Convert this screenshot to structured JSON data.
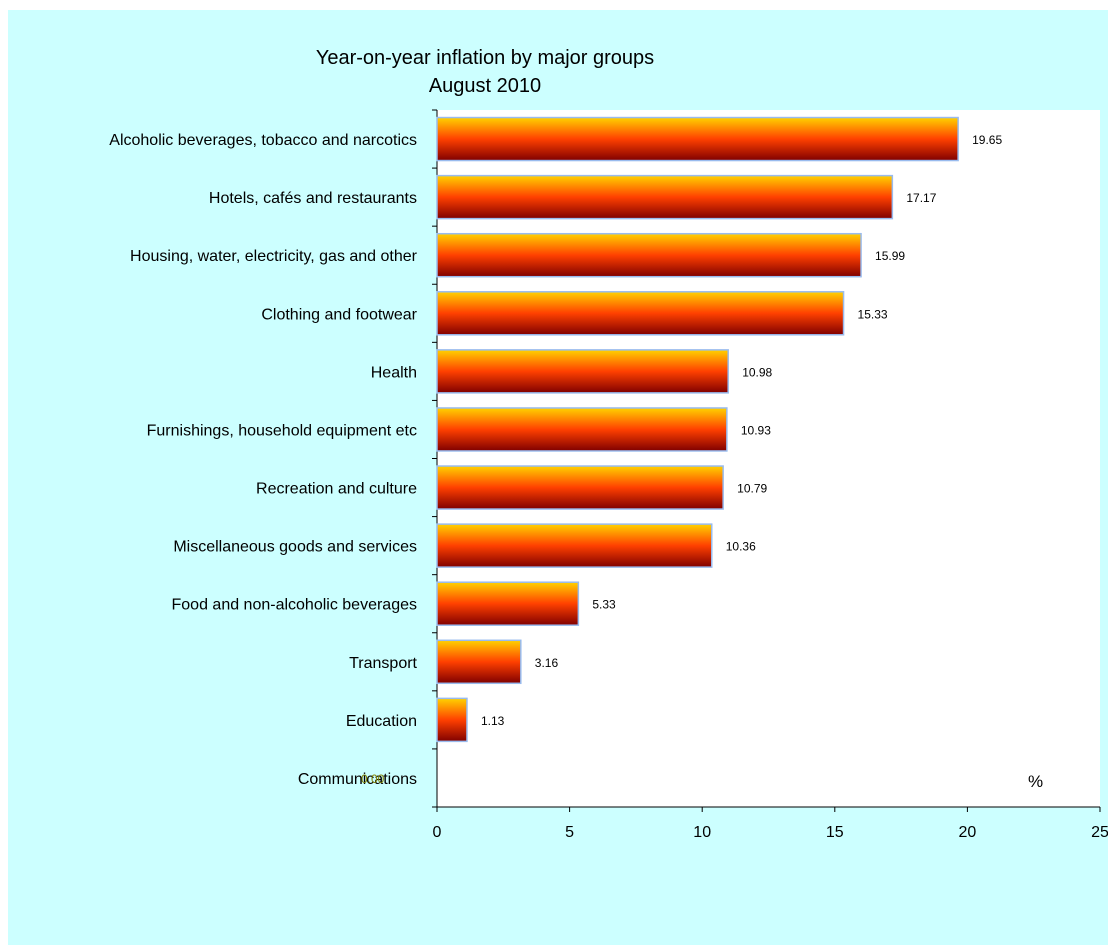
{
  "chart_data": {
    "type": "bar",
    "orientation": "horizontal",
    "title": "Year-on-year inflation by major groups",
    "subtitle": "August 2010",
    "xlabel": "",
    "ylabel": "",
    "unit_label": "%",
    "xlim": [
      0,
      25
    ],
    "x_ticks": [
      0,
      5,
      10,
      15,
      20,
      25
    ],
    "grid": false,
    "legend": "none",
    "categories": [
      "Alcoholic beverages, tobacco and narcotics",
      "Hotels, cafés and restaurants",
      "Housing, water, electricity, gas and other",
      "Clothing and footwear",
      "Health",
      "Furnishings, household equipment etc",
      "Recreation and culture",
      "Miscellaneous goods and services",
      "Food and non-alcoholic beverages",
      "Transport",
      "Education",
      "Communications"
    ],
    "values": [
      19.65,
      17.17,
      15.99,
      15.33,
      10.98,
      10.93,
      10.79,
      10.36,
      5.33,
      3.16,
      1.13,
      0.0
    ],
    "value_labels": [
      "19.65",
      "17.17",
      "15.99",
      "15.33",
      "10.98",
      "10.93",
      "10.79",
      "10.36",
      "5.33",
      "3.16",
      "1.13",
      "0.00"
    ],
    "colors": {
      "background": "#ccffff",
      "plot_area": "#ffffff",
      "bar_top": "#ffd200",
      "bar_mid": "#ff4000",
      "bar_bottom": "#800000",
      "bar_border": "#99bbee",
      "zero_label": "#808000"
    }
  }
}
